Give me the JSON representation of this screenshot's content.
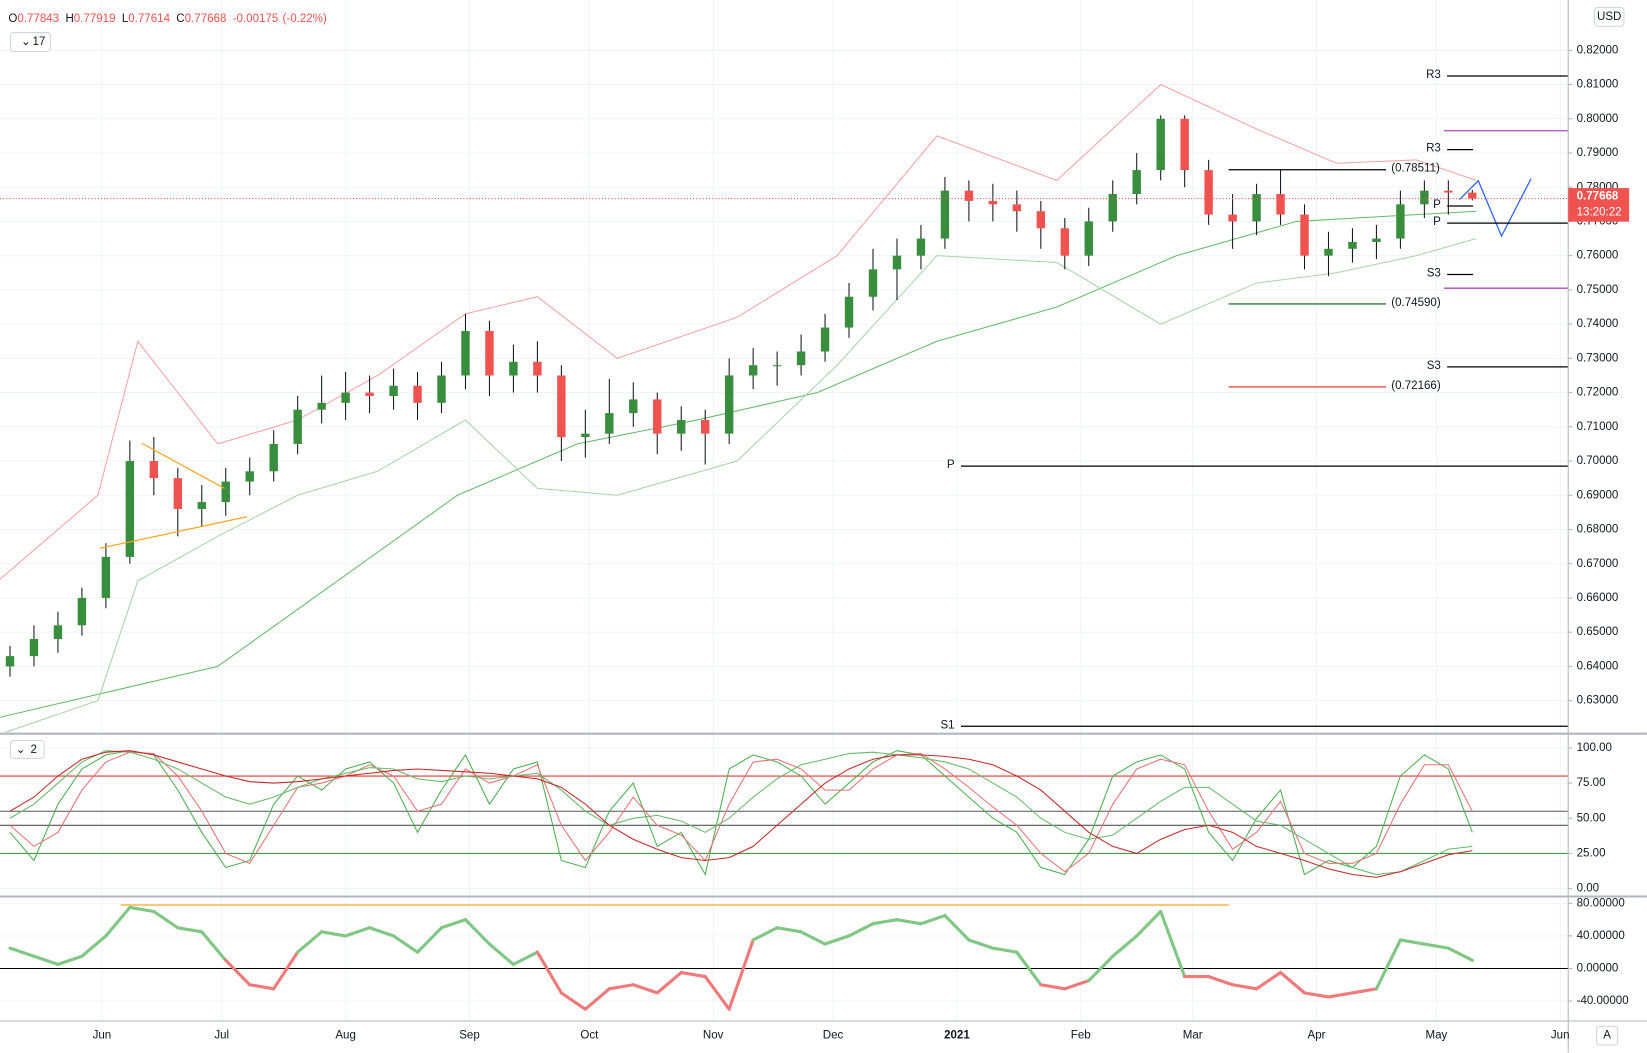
{
  "chart_data": {
    "type": "candlestick",
    "header": {
      "labels": [
        "O",
        "H",
        "L",
        "C"
      ],
      "change": "-0.00175",
      "change_pct": "(-0.22%)"
    },
    "indicator_count": "17",
    "currency": "USD",
    "countdown": "13:20:22",
    "auto_label": "A",
    "up_color": "#388e3c",
    "down_color": "#ef5350",
    "grid": true,
    "x": [
      8,
      14,
      20,
      26,
      32,
      38,
      44,
      50,
      56,
      62,
      68,
      74,
      80,
      86,
      92,
      98,
      104,
      110,
      116,
      122,
      128,
      134,
      140,
      146,
      152,
      158,
      164,
      170,
      176,
      182,
      188,
      194,
      200,
      206,
      212,
      218,
      224,
      230,
      236,
      242,
      248,
      254,
      260,
      266,
      272,
      278,
      284,
      290,
      296,
      302,
      308,
      314,
      320,
      326,
      332,
      338,
      344,
      350,
      356,
      362,
      368,
      374
    ],
    "open": [
      0.64,
      0.643,
      0.648,
      0.652,
      0.66,
      0.672,
      0.7,
      0.695,
      0.686,
      0.688,
      0.694,
      0.697,
      0.705,
      0.715,
      0.717,
      0.72,
      0.719,
      0.722,
      0.717,
      0.725,
      0.738,
      0.725,
      0.729,
      0.725,
      0.707,
      0.708,
      0.714,
      0.718,
      0.708,
      0.712,
      0.708,
      0.725,
      0.728,
      0.728,
      0.732,
      0.739,
      0.748,
      0.756,
      0.76,
      0.765,
      0.779,
      0.776,
      0.775,
      0.773,
      0.768,
      0.76,
      0.77,
      0.778,
      0.785,
      0.8,
      0.785,
      0.772,
      0.77,
      0.778,
      0.772,
      0.76,
      0.762,
      0.764,
      0.765,
      0.775,
      0.779,
      0.77843
    ],
    "high": [
      0.646,
      0.652,
      0.656,
      0.663,
      0.676,
      0.706,
      0.707,
      0.698,
      0.693,
      0.698,
      0.701,
      0.709,
      0.719,
      0.725,
      0.726,
      0.725,
      0.727,
      0.726,
      0.729,
      0.743,
      0.741,
      0.734,
      0.735,
      0.728,
      0.715,
      0.724,
      0.723,
      0.72,
      0.716,
      0.715,
      0.73,
      0.733,
      0.732,
      0.737,
      0.743,
      0.752,
      0.762,
      0.765,
      0.769,
      0.783,
      0.782,
      0.781,
      0.779,
      0.776,
      0.771,
      0.774,
      0.782,
      0.79,
      0.801,
      0.801,
      0.788,
      0.778,
      0.781,
      0.785,
      0.775,
      0.767,
      0.768,
      0.769,
      0.779,
      0.782,
      0.782,
      0.77919
    ],
    "low": [
      0.637,
      0.64,
      0.644,
      0.649,
      0.657,
      0.67,
      0.69,
      0.678,
      0.681,
      0.684,
      0.69,
      0.694,
      0.702,
      0.711,
      0.712,
      0.714,
      0.715,
      0.712,
      0.714,
      0.721,
      0.719,
      0.72,
      0.72,
      0.7,
      0.701,
      0.705,
      0.71,
      0.702,
      0.703,
      0.699,
      0.705,
      0.721,
      0.722,
      0.725,
      0.729,
      0.736,
      0.744,
      0.747,
      0.756,
      0.762,
      0.77,
      0.77,
      0.767,
      0.762,
      0.756,
      0.757,
      0.767,
      0.775,
      0.782,
      0.78,
      0.769,
      0.762,
      0.766,
      0.769,
      0.756,
      0.754,
      0.758,
      0.759,
      0.762,
      0.771,
      0.772,
      0.77614
    ],
    "close": [
      0.643,
      0.648,
      0.652,
      0.66,
      0.672,
      0.7,
      0.695,
      0.686,
      0.688,
      0.694,
      0.697,
      0.705,
      0.715,
      0.717,
      0.72,
      0.719,
      0.722,
      0.717,
      0.725,
      0.738,
      0.725,
      0.729,
      0.725,
      0.707,
      0.708,
      0.714,
      0.718,
      0.708,
      0.712,
      0.708,
      0.725,
      0.728,
      0.728,
      0.732,
      0.739,
      0.748,
      0.756,
      0.76,
      0.765,
      0.779,
      0.776,
      0.775,
      0.773,
      0.768,
      0.76,
      0.77,
      0.778,
      0.785,
      0.8,
      0.785,
      0.772,
      0.77,
      0.778,
      0.772,
      0.76,
      0.762,
      0.764,
      0.765,
      0.775,
      0.779,
      0.77843,
      0.77668
    ],
    "xlim": [
      5.5,
      398
    ],
    "xticks": [
      {
        "value": 31,
        "label": "Jun"
      },
      {
        "value": 61,
        "label": "Jul"
      },
      {
        "value": 92,
        "label": "Aug"
      },
      {
        "value": 123,
        "label": "Sep"
      },
      {
        "value": 153,
        "label": "Oct"
      },
      {
        "value": 184,
        "label": "Nov"
      },
      {
        "value": 214,
        "label": "Dec"
      },
      {
        "value": 245,
        "label": "2021"
      },
      {
        "value": 276,
        "label": "Feb"
      },
      {
        "value": 304,
        "label": "Mar"
      },
      {
        "value": 335,
        "label": "Apr"
      },
      {
        "value": 365,
        "label": "May"
      },
      {
        "value": 396,
        "label": "Jun"
      }
    ],
    "ylim": [
      0.6208,
      0.8347
    ],
    "yticks": [
      {
        "value": 0.63,
        "label": "0.63000"
      },
      {
        "value": 0.64,
        "label": "0.64000"
      },
      {
        "value": 0.65,
        "label": "0.65000"
      },
      {
        "value": 0.66,
        "label": "0.66000"
      },
      {
        "value": 0.67,
        "label": "0.67000"
      },
      {
        "value": 0.68,
        "label": "0.68000"
      },
      {
        "value": 0.69,
        "label": "0.69000"
      },
      {
        "value": 0.7,
        "label": "0.70000"
      },
      {
        "value": 0.71,
        "label": "0.71000"
      },
      {
        "value": 0.72,
        "label": "0.72000"
      },
      {
        "value": 0.73,
        "label": "0.73000"
      },
      {
        "value": 0.74,
        "label": "0.74000"
      },
      {
        "value": 0.75,
        "label": "0.75000"
      },
      {
        "value": 0.76,
        "label": "0.76000"
      },
      {
        "value": 0.77,
        "label": "0.77000"
      },
      {
        "value": 0.78,
        "label": "0.78000"
      },
      {
        "value": 0.79,
        "label": "0.79000"
      },
      {
        "value": 0.8,
        "label": "0.80000"
      },
      {
        "value": 0.81,
        "label": "0.81000"
      },
      {
        "value": 0.82,
        "label": "0.82000"
      }
    ],
    "overlays": [
      {
        "color": "#66bb6a",
        "x": [
          5,
          60,
          90,
          120,
          150,
          180,
          210,
          240,
          270,
          300,
          330,
          360,
          375
        ],
        "values": [
          0.625,
          0.64,
          0.665,
          0.69,
          0.705,
          0.712,
          0.72,
          0.735,
          0.745,
          0.76,
          0.77,
          0.772,
          0.773
        ]
      },
      {
        "color": "#f4a3a3",
        "x": [
          5,
          30,
          40,
          60,
          80,
          100,
          122,
          140,
          160,
          190,
          215,
          240,
          270,
          296,
          320,
          340,
          360,
          375
        ],
        "values": [
          0.665,
          0.69,
          0.735,
          0.705,
          0.712,
          0.725,
          0.743,
          0.748,
          0.73,
          0.742,
          0.76,
          0.795,
          0.782,
          0.81,
          0.797,
          0.787,
          0.788,
          0.782
        ]
      },
      {
        "color": "#a5d6a7",
        "x": [
          5,
          30,
          40,
          60,
          80,
          100,
          122,
          140,
          160,
          190,
          215,
          240,
          270,
          296,
          320,
          340,
          360,
          375
        ],
        "values": [
          0.62,
          0.63,
          0.665,
          0.678,
          0.69,
          0.697,
          0.712,
          0.692,
          0.69,
          0.7,
          0.728,
          0.76,
          0.758,
          0.74,
          0.752,
          0.755,
          0.76,
          0.765
        ]
      }
    ],
    "trendlines": [
      {
        "color": "#f5a623",
        "x": [
          41,
          61.7
        ],
        "values": [
          0.7052,
          0.692
        ]
      },
      {
        "color": "#f5a623",
        "x": [
          30.5,
          67.3
        ],
        "values": [
          0.6745,
          0.6837
        ]
      },
      {
        "color": "#2962ff",
        "x": [
          370.8,
          375.5,
          381.3,
          388.7
        ],
        "values": [
          0.7764,
          0.7819,
          0.7657,
          0.7825
        ]
      }
    ],
    "levels": [
      {
        "label": "R3",
        "value": 0.8125,
        "x": [
          367.7,
          398
        ],
        "color": "#000000",
        "label_pos": "start"
      },
      {
        "value": 0.7965,
        "x": [
          366.9,
          398
        ],
        "color": "#ab47bc"
      },
      {
        "label": "R3",
        "value": 0.791,
        "x": [
          367.7,
          374.2
        ],
        "color": "#000000",
        "label_pos": "start"
      },
      {
        "label": "(0.78511)",
        "value": 0.78511,
        "x": [
          313,
          352.4
        ],
        "color": "#000000",
        "label_pos": "end"
      },
      {
        "label": "P",
        "value": 0.7745,
        "x": [
          367.7,
          374.2
        ],
        "color": "#000000",
        "label_pos": "start"
      },
      {
        "label": "P",
        "value": 0.7695,
        "x": [
          367.7,
          398
        ],
        "color": "#000000",
        "label_pos": "start"
      },
      {
        "label": "S3",
        "value": 0.7545,
        "x": [
          367.7,
          374.2
        ],
        "color": "#000000",
        "label_pos": "start"
      },
      {
        "value": 0.7505,
        "x": [
          366.9,
          398
        ],
        "color": "#ab47bc"
      },
      {
        "label": "(0.74590)",
        "value": 0.7459,
        "x": [
          313,
          352.4
        ],
        "color": "#2e7d32",
        "label_pos": "end"
      },
      {
        "label": "S3",
        "value": 0.7275,
        "x": [
          367.7,
          398
        ],
        "color": "#000000",
        "label_pos": "start"
      },
      {
        "label": "(0.72166)",
        "value": 0.72166,
        "x": [
          313,
          352.4
        ],
        "color": "#e53935",
        "label_pos": "end"
      },
      {
        "label": "P",
        "value": 0.6985,
        "x": [
          246,
          398
        ],
        "color": "#000000",
        "label_pos": "start"
      },
      {
        "label": "S1",
        "value": 0.6225,
        "x": [
          246,
          398
        ],
        "color": "#000000",
        "label_pos": "start"
      }
    ],
    "panes": [
      {
        "type": "line",
        "badge": "2",
        "ylim": [
          -4.5,
          109
        ],
        "yticks": [
          {
            "value": 0,
            "label": "0.00"
          },
          {
            "value": 25,
            "label": "25.00"
          },
          {
            "value": 50,
            "label": "50.00"
          },
          {
            "value": 75,
            "label": "75.00"
          },
          {
            "value": 100,
            "label": "100.00"
          }
        ],
        "levels": [
          {
            "value": 80,
            "color": "#e53935"
          },
          {
            "value": 55,
            "color": "#555555"
          },
          {
            "value": 45,
            "color": "#555555"
          },
          {
            "value": 25,
            "color": "#43a047"
          }
        ],
        "series": [
          {
            "color": "#4caf50",
            "values": [
              40,
              20,
              60,
              85,
              95,
              98,
              95,
              70,
              40,
              15,
              20,
              60,
              80,
              70,
              85,
              90,
              75,
              40,
              70,
              95,
              60,
              85,
              90,
              20,
              15,
              55,
              75,
              30,
              40,
              10,
              85,
              95,
              90,
              80,
              60,
              75,
              90,
              98,
              95,
              80,
              65,
              50,
              40,
              15,
              10,
              35,
              80,
              90,
              95,
              85,
              40,
              20,
              50,
              70,
              10,
              20,
              15,
              30,
              80,
              95,
              85,
              40
            ]
          },
          {
            "color": "#e57373",
            "values": [
              45,
              30,
              40,
              70,
              90,
              97,
              96,
              80,
              55,
              25,
              18,
              45,
              72,
              75,
              80,
              88,
              80,
              55,
              60,
              85,
              75,
              80,
              88,
              45,
              20,
              40,
              65,
              45,
              38,
              20,
              60,
              90,
              92,
              85,
              70,
              70,
              85,
              95,
              96,
              85,
              72,
              58,
              45,
              25,
              12,
              25,
              60,
              85,
              92,
              88,
              55,
              28,
              40,
              62,
              25,
              18,
              18,
              25,
              60,
              88,
              88,
              55
            ]
          },
          {
            "color": "#66bb6a",
            "values": [
              50,
              60,
              75,
              90,
              98,
              97,
              92,
              85,
              75,
              65,
              60,
              65,
              72,
              78,
              82,
              86,
              85,
              78,
              76,
              80,
              78,
              80,
              82,
              70,
              55,
              45,
              50,
              52,
              48,
              40,
              50,
              65,
              78,
              88,
              92,
              96,
              97,
              95,
              93,
              90,
              85,
              75,
              65,
              50,
              40,
              35,
              38,
              50,
              62,
              72,
              72,
              60,
              48,
              45,
              35,
              25,
              15,
              10,
              12,
              20,
              28,
              30
            ]
          },
          {
            "color": "#c62828",
            "values": [
              55,
              65,
              80,
              92,
              97,
              98,
              95,
              90,
              85,
              80,
              76,
              75,
              76,
              78,
              80,
              82,
              84,
              85,
              84,
              83,
              82,
              80,
              78,
              72,
              60,
              45,
              35,
              28,
              22,
              20,
              22,
              30,
              45,
              60,
              75,
              85,
              92,
              95,
              95,
              94,
              92,
              88,
              80,
              70,
              55,
              40,
              30,
              25,
              35,
              42,
              45,
              40,
              30,
              25,
              20,
              14,
              10,
              8,
              12,
              18,
              24,
              27
            ]
          }
        ]
      },
      {
        "type": "momentum",
        "ylim": [
          -64.5,
          86.5
        ],
        "yticks": [
          {
            "value": -40,
            "label": "-40.00000"
          },
          {
            "value": 0,
            "label": "0.00000"
          },
          {
            "value": 40,
            "label": "40.00000"
          },
          {
            "value": 80,
            "label": "80.00000"
          }
        ],
        "levels": [
          {
            "value": 0,
            "color": "#000000"
          }
        ],
        "up_color": "#81c784",
        "down_color": "#ef7a7a",
        "series": [
          {
            "values": [
              25,
              15,
              5,
              15,
              40,
              75,
              70,
              50,
              45,
              10,
              -20,
              -25,
              20,
              45,
              40,
              50,
              40,
              20,
              50,
              60,
              30,
              5,
              20,
              -30,
              -50,
              -25,
              -20,
              -30,
              -5,
              -10,
              -50,
              35,
              50,
              45,
              30,
              40,
              55,
              60,
              55,
              65,
              35,
              25,
              20,
              -20,
              -25,
              -15,
              15,
              40,
              70,
              -10,
              -10,
              -20,
              -25,
              -5,
              -30,
              -35,
              -30,
              -25,
              35,
              30,
              25,
              10
            ]
          }
        ],
        "trendlines": [
          {
            "color": "#f5a623",
            "x": [
              35.7,
              313
            ],
            "values": [
              78,
              78
            ]
          }
        ]
      }
    ]
  }
}
